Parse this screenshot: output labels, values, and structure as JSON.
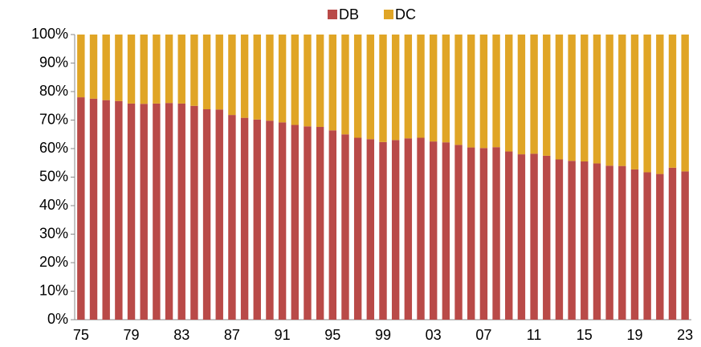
{
  "chart_data": {
    "type": "stacked_bar",
    "categories": [
      "75",
      null,
      null,
      null,
      "79",
      null,
      null,
      null,
      "83",
      null,
      null,
      null,
      "87",
      null,
      null,
      null,
      "91",
      null,
      null,
      null,
      "95",
      null,
      null,
      null,
      "99",
      null,
      null,
      null,
      "03",
      null,
      null,
      null,
      "07",
      null,
      null,
      null,
      "11",
      null,
      null,
      null,
      "15",
      null,
      null,
      null,
      "19",
      null,
      null,
      null,
      "23"
    ],
    "series": [
      {
        "name": "DB",
        "color": "#b94a48",
        "values": [
          78,
          77.5,
          77,
          76.7,
          75.8,
          75.7,
          75.8,
          76,
          75.8,
          75,
          73.8,
          73.7,
          71.8,
          70.8,
          70.2,
          69.8,
          69.2,
          68.3,
          67.8,
          67.6,
          66.4,
          65,
          63.8,
          63.3,
          62.3,
          63,
          63.6,
          63.8,
          62.5,
          62.2,
          61.3,
          60.4,
          60.2,
          60.5,
          59,
          58,
          58.2,
          57.5,
          56.2,
          55.7,
          55.5,
          54.8,
          54,
          53.9,
          52.7,
          51.7,
          51.1,
          53.3,
          52
        ]
      },
      {
        "name": "DC",
        "color": "#e0a526",
        "values": [
          22,
          22.5,
          23,
          23.3,
          24.2,
          24.3,
          24.2,
          24,
          24.2,
          25,
          26.2,
          26.3,
          28.2,
          29.2,
          29.8,
          30.2,
          30.8,
          31.7,
          32.2,
          32.4,
          33.6,
          35,
          36.2,
          36.7,
          37.7,
          37,
          36.4,
          36.2,
          37.5,
          37.8,
          38.7,
          39.6,
          39.8,
          39.5,
          41,
          42,
          41.8,
          42.5,
          43.8,
          44.3,
          44.5,
          45.2,
          46,
          46.1,
          47.3,
          48.3,
          48.9,
          46.7,
          48
        ]
      }
    ],
    "ylim": [
      0,
      100
    ],
    "yticks": [
      {
        "value": 0,
        "label": "0%"
      },
      {
        "value": 10,
        "label": "10%"
      },
      {
        "value": 20,
        "label": "20%"
      },
      {
        "value": 30,
        "label": "30%"
      },
      {
        "value": 40,
        "label": "40%"
      },
      {
        "value": 50,
        "label": "50%"
      },
      {
        "value": 60,
        "label": "60%"
      },
      {
        "value": 70,
        "label": "70%"
      },
      {
        "value": 80,
        "label": "80%"
      },
      {
        "value": 90,
        "label": "90%"
      },
      {
        "value": 100,
        "label": "100%"
      }
    ],
    "legend": "top",
    "grid": false
  }
}
